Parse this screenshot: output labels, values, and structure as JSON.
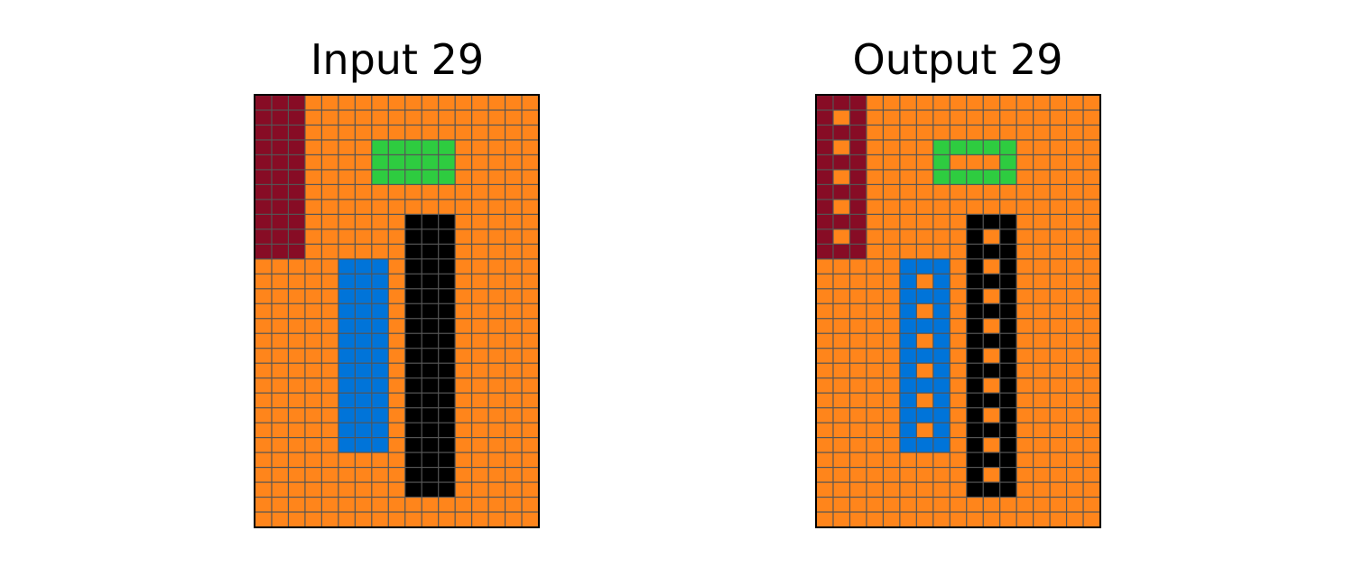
{
  "colors": {
    "grid_line": "#555555",
    "border": "#000000",
    "palette": {
      "0": "#000000",
      "1": "#0074D9",
      "3": "#2ECC40",
      "7": "#FF851B",
      "9": "#870C25"
    }
  },
  "panels": [
    {
      "title": "Input 29",
      "grid": [
        "99977777777777777",
        "99977777777777777",
        "99977777777777777",
        "99977773333377777",
        "99977773333377777",
        "99977773333377777",
        "99977777777777777",
        "99977777777777777",
        "99977777700077777",
        "99977777700077777",
        "99977777700077777",
        "77777111700077777",
        "77777111700077777",
        "77777111700077777",
        "77777111700077777",
        "77777111700077777",
        "77777111700077777",
        "77777111700077777",
        "77777111700077777",
        "77777111700077777",
        "77777111700077777",
        "77777111700077777",
        "77777111700077777",
        "77777111700077777",
        "77777777700077777",
        "77777777700077777",
        "77777777700077777",
        "77777777777777777",
        "77777777777777777"
      ]
    },
    {
      "title": "Output 29",
      "grid": [
        "99977777777777777",
        "97977777777777777",
        "99977777777777777",
        "97977773333377777",
        "99977773777377777",
        "97977773333377777",
        "99977777777777777",
        "97977777777777777",
        "99977777700077777",
        "97977777707077777",
        "99977777700077777",
        "77777111707077777",
        "77777171700077777",
        "77777111707077777",
        "77777171700077777",
        "77777111707077777",
        "77777171700077777",
        "77777111707077777",
        "77777171700077777",
        "77777111707077777",
        "77777171700077777",
        "77777111707077777",
        "77777171700077777",
        "77777111707077777",
        "77777777700077777",
        "77777777707077777",
        "77777777700077777",
        "77777777777777777",
        "77777777777777777"
      ]
    }
  ]
}
